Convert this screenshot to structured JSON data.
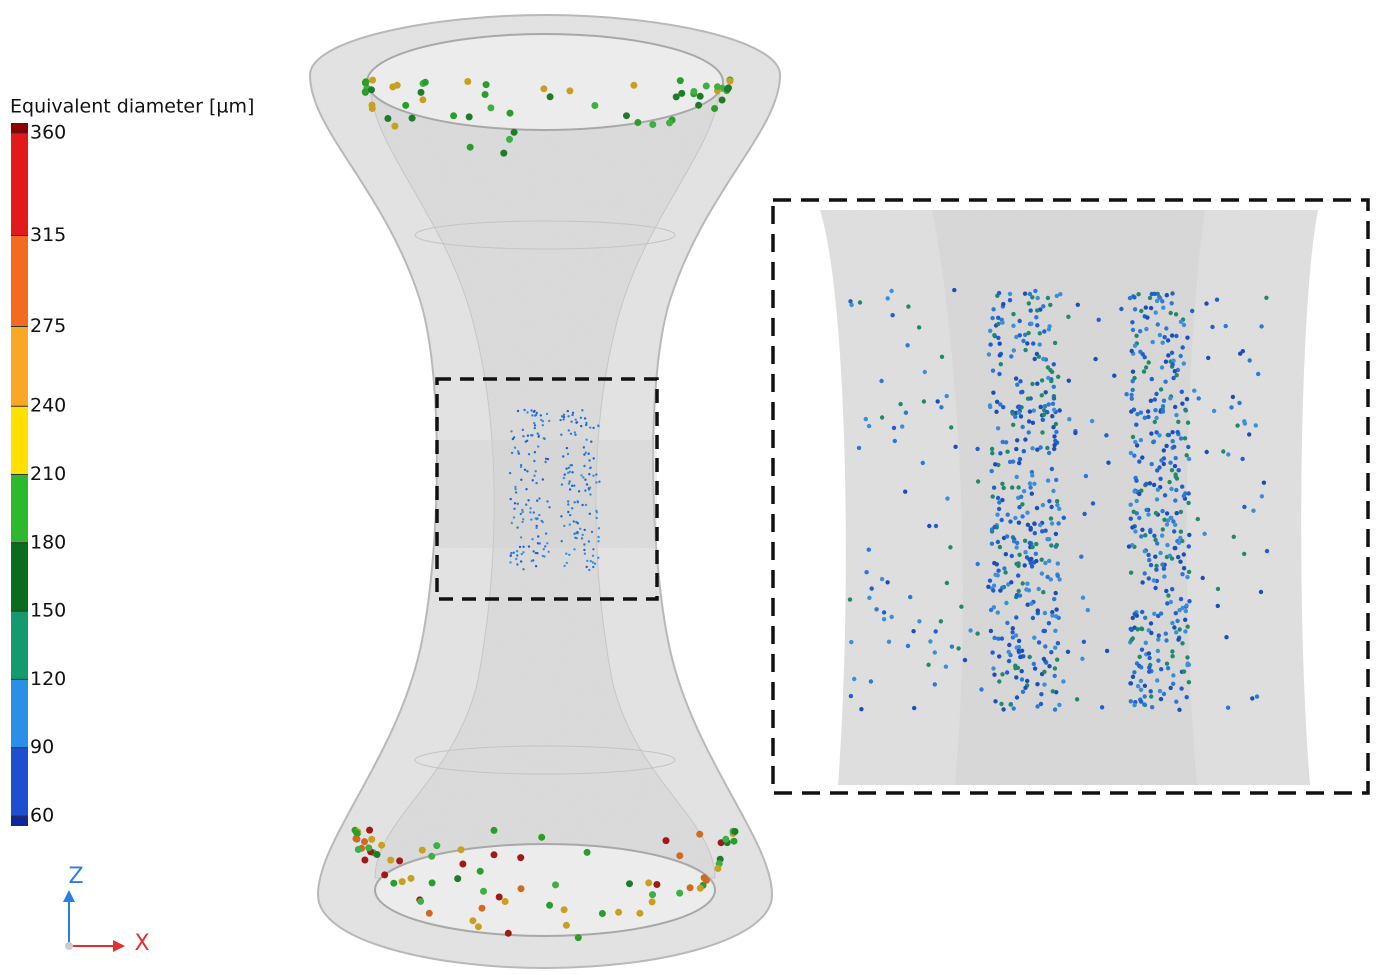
{
  "colorbar": {
    "title": "Equivalent diameter [µm]",
    "ticks": [
      360,
      315,
      275,
      240,
      210,
      180,
      150,
      120,
      90,
      60
    ],
    "colors": [
      "#e31a1c",
      "#f26b1f",
      "#f9a825",
      "#ffe000",
      "#2db82d",
      "#0b6b1e",
      "#139a6e",
      "#2b8fe6",
      "#1f4fd1"
    ],
    "end_colors": [
      "#8b0000",
      "#12269c"
    ]
  },
  "axes_triad": {
    "z": "Z",
    "x": "X"
  }
}
